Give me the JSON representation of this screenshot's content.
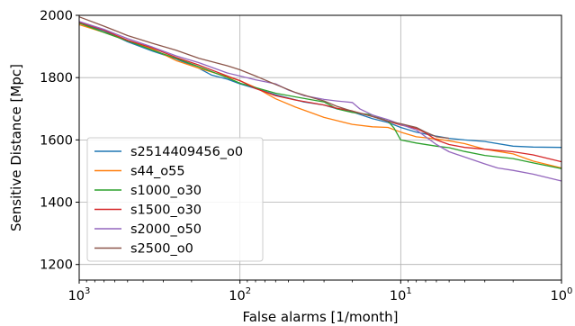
{
  "chart_data": {
    "type": "line",
    "title": "",
    "xlabel": "False alarms [1/month]",
    "ylabel": "Sensitive Distance [Mpc]",
    "x_scale": "log",
    "x_reversed": true,
    "xlim": [
      1000,
      1
    ],
    "ylim": [
      1150,
      2000
    ],
    "x_ticks": [
      {
        "value": 1000,
        "base": "10",
        "exp": "3"
      },
      {
        "value": 100,
        "base": "10",
        "exp": "2"
      },
      {
        "value": 10,
        "base": "10",
        "exp": "1"
      },
      {
        "value": 1,
        "base": "10",
        "exp": "0"
      }
    ],
    "y_ticks": [
      1200,
      1400,
      1600,
      1800,
      2000
    ],
    "grid": true,
    "legend_position": "lower-left",
    "series": [
      {
        "name": "s2514409456_o0",
        "color": "#1f77b4",
        "points": [
          [
            1000,
            1975
          ],
          [
            700,
            1950
          ],
          [
            500,
            1915
          ],
          [
            350,
            1885
          ],
          [
            250,
            1860
          ],
          [
            180,
            1830
          ],
          [
            150,
            1808
          ],
          [
            120,
            1795
          ],
          [
            100,
            1780
          ],
          [
            80,
            1765
          ],
          [
            60,
            1745
          ],
          [
            40,
            1722
          ],
          [
            30,
            1712
          ],
          [
            25,
            1700
          ],
          [
            20,
            1690
          ],
          [
            15,
            1668
          ],
          [
            12,
            1656
          ],
          [
            10,
            1640
          ],
          [
            8,
            1625
          ],
          [
            6,
            1612
          ],
          [
            5,
            1605
          ],
          [
            4,
            1600
          ],
          [
            3,
            1595
          ],
          [
            2,
            1580
          ],
          [
            1.5,
            1577
          ],
          [
            1,
            1576
          ]
        ]
      },
      {
        "name": "s44_o55",
        "color": "#ff7f0e",
        "points": [
          [
            1000,
            1970
          ],
          [
            700,
            1945
          ],
          [
            500,
            1918
          ],
          [
            350,
            1892
          ],
          [
            250,
            1855
          ],
          [
            180,
            1830
          ],
          [
            120,
            1803
          ],
          [
            100,
            1790
          ],
          [
            80,
            1768
          ],
          [
            60,
            1732
          ],
          [
            45,
            1705
          ],
          [
            35,
            1685
          ],
          [
            30,
            1672
          ],
          [
            25,
            1662
          ],
          [
            20,
            1650
          ],
          [
            15,
            1642
          ],
          [
            12,
            1640
          ],
          [
            10,
            1625
          ],
          [
            8,
            1610
          ],
          [
            6,
            1603
          ],
          [
            5,
            1597
          ],
          [
            4,
            1588
          ],
          [
            3,
            1570
          ],
          [
            2,
            1555
          ],
          [
            1.5,
            1532
          ],
          [
            1,
            1510
          ]
        ]
      },
      {
        "name": "s1000_o30",
        "color": "#2ca02c",
        "points": [
          [
            1000,
            1975
          ],
          [
            700,
            1945
          ],
          [
            500,
            1918
          ],
          [
            350,
            1888
          ],
          [
            250,
            1862
          ],
          [
            180,
            1835
          ],
          [
            120,
            1800
          ],
          [
            100,
            1782
          ],
          [
            80,
            1768
          ],
          [
            60,
            1750
          ],
          [
            45,
            1738
          ],
          [
            35,
            1728
          ],
          [
            30,
            1722
          ],
          [
            25,
            1700
          ],
          [
            20,
            1688
          ],
          [
            15,
            1680
          ],
          [
            12,
            1660
          ],
          [
            11,
            1638
          ],
          [
            10,
            1600
          ],
          [
            8,
            1590
          ],
          [
            6,
            1580
          ],
          [
            5,
            1575
          ],
          [
            4,
            1563
          ],
          [
            3,
            1550
          ],
          [
            2,
            1540
          ],
          [
            1.5,
            1526
          ],
          [
            1,
            1508
          ]
        ]
      },
      {
        "name": "s1500_o30",
        "color": "#d62728",
        "points": [
          [
            1000,
            1978
          ],
          [
            700,
            1952
          ],
          [
            500,
            1920
          ],
          [
            350,
            1895
          ],
          [
            250,
            1865
          ],
          [
            180,
            1840
          ],
          [
            120,
            1805
          ],
          [
            100,
            1790
          ],
          [
            80,
            1765
          ],
          [
            60,
            1742
          ],
          [
            45,
            1728
          ],
          [
            35,
            1718
          ],
          [
            30,
            1712
          ],
          [
            25,
            1702
          ],
          [
            20,
            1693
          ],
          [
            15,
            1675
          ],
          [
            12,
            1660
          ],
          [
            10,
            1648
          ],
          [
            8,
            1637
          ],
          [
            7,
            1622
          ],
          [
            6,
            1600
          ],
          [
            5,
            1585
          ],
          [
            4,
            1576
          ],
          [
            3,
            1570
          ],
          [
            2,
            1562
          ],
          [
            1.5,
            1552
          ],
          [
            1,
            1530
          ]
        ]
      },
      {
        "name": "s2000_o50",
        "color": "#9467bd",
        "points": [
          [
            1000,
            1980
          ],
          [
            700,
            1955
          ],
          [
            500,
            1925
          ],
          [
            350,
            1898
          ],
          [
            250,
            1870
          ],
          [
            180,
            1848
          ],
          [
            120,
            1815
          ],
          [
            100,
            1805
          ],
          [
            80,
            1793
          ],
          [
            60,
            1780
          ],
          [
            50,
            1760
          ],
          [
            40,
            1742
          ],
          [
            30,
            1730
          ],
          [
            25,
            1725
          ],
          [
            20,
            1720
          ],
          [
            18,
            1700
          ],
          [
            15,
            1680
          ],
          [
            12,
            1665
          ],
          [
            10,
            1650
          ],
          [
            8,
            1632
          ],
          [
            7,
            1610
          ],
          [
            6,
            1585
          ],
          [
            5,
            1562
          ],
          [
            4,
            1545
          ],
          [
            3,
            1523
          ],
          [
            2.5,
            1510
          ],
          [
            2,
            1502
          ],
          [
            1.5,
            1490
          ],
          [
            1,
            1468
          ]
        ]
      },
      {
        "name": "s2500_o0",
        "color": "#8c564b",
        "points": [
          [
            1000,
            1995
          ],
          [
            700,
            1965
          ],
          [
            500,
            1935
          ],
          [
            350,
            1910
          ],
          [
            250,
            1888
          ],
          [
            180,
            1862
          ],
          [
            120,
            1838
          ],
          [
            100,
            1825
          ],
          [
            80,
            1805
          ],
          [
            60,
            1778
          ],
          [
            45,
            1752
          ],
          [
            35,
            1735
          ],
          [
            30,
            1725
          ],
          [
            25,
            1708
          ],
          [
            20,
            1692
          ],
          [
            15,
            1675
          ],
          [
            12,
            1660
          ],
          [
            10,
            1652
          ],
          [
            8,
            1640
          ],
          [
            7,
            1625
          ],
          [
            6,
            1610
          ],
          [
            5,
            1605
          ]
        ]
      }
    ]
  }
}
